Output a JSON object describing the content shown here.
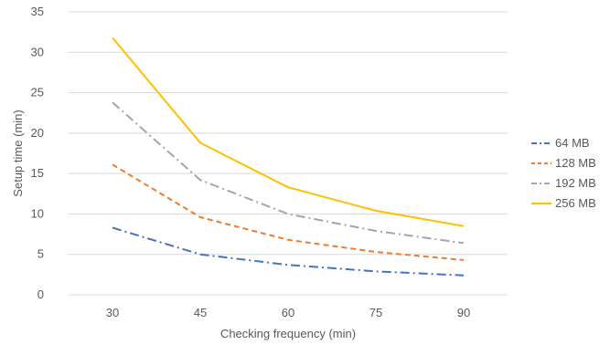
{
  "chart_data": {
    "type": "line",
    "categories": [
      "30",
      "45",
      "60",
      "75",
      "90"
    ],
    "x": [
      30,
      45,
      60,
      75,
      90
    ],
    "series": [
      {
        "name": "64 MB",
        "values": [
          8.3,
          5.0,
          3.7,
          2.9,
          2.4
        ],
        "color": "#4472C4",
        "dash": "dash-dot"
      },
      {
        "name": "128 MB",
        "values": [
          16.1,
          9.6,
          6.8,
          5.3,
          4.3
        ],
        "color": "#ED7D31",
        "dash": "dash"
      },
      {
        "name": "192 MB",
        "values": [
          23.8,
          14.2,
          10.0,
          7.9,
          6.4
        ],
        "color": "#A5A5A5",
        "dash": "dash-dot"
      },
      {
        "name": "256 MB",
        "values": [
          31.8,
          18.8,
          13.3,
          10.4,
          8.5
        ],
        "color": "#FFC000",
        "dash": "solid"
      }
    ],
    "xlabel": "Checking frequency (min)",
    "ylabel": "Setup time (min)",
    "ylim": [
      0,
      35
    ],
    "yticks": [
      "0",
      "5",
      "10",
      "15",
      "20",
      "25",
      "30",
      "35"
    ],
    "grid": true,
    "legend_position": "right"
  }
}
